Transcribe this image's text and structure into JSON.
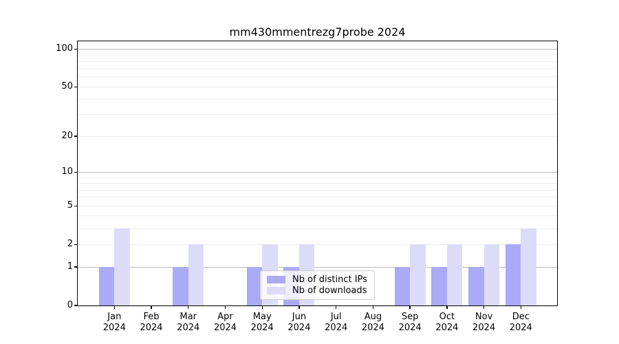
{
  "chart_data": {
    "type": "bar",
    "title": "mm430mmentrezg7probe 2024",
    "categories": [
      "Jan 2024",
      "Feb 2024",
      "Mar 2024",
      "Apr 2024",
      "May 2024",
      "Jun 2024",
      "Jul 2024",
      "Aug 2024",
      "Sep 2024",
      "Oct 2024",
      "Nov 2024",
      "Dec 2024"
    ],
    "x_tick_month_labels": [
      "Jan",
      "Feb",
      "Mar",
      "Apr",
      "May",
      "Jun",
      "Jul",
      "Aug",
      "Sep",
      "Oct",
      "Nov",
      "Dec"
    ],
    "x_tick_year_label": "2024",
    "series": [
      {
        "name": "Nb of distinct IPs",
        "color": "#aaaaf6",
        "values": [
          1,
          0,
          1,
          0,
          1,
          1,
          0,
          0,
          1,
          1,
          1,
          2
        ]
      },
      {
        "name": "Nb of downloads",
        "color": "#dcdcf8",
        "values": [
          3,
          0,
          2,
          0,
          2,
          2,
          0,
          0,
          2,
          2,
          2,
          3
        ]
      }
    ],
    "yscale": "log10(1+v)",
    "ylim": [
      0,
      115
    ],
    "y_ticks": [
      {
        "value": 0,
        "label": "0"
      },
      {
        "value": 1,
        "label": "1"
      },
      {
        "value": 2,
        "label": "2"
      },
      {
        "value": 5,
        "label": "5"
      },
      {
        "value": 10,
        "label": "10"
      },
      {
        "value": 20,
        "label": "20"
      },
      {
        "value": 50,
        "label": "50"
      },
      {
        "value": 100,
        "label": "100"
      }
    ],
    "major_gridlines": [
      1,
      10,
      100
    ],
    "minor_gridlines": [
      2,
      3,
      4,
      5,
      6,
      7,
      8,
      9,
      20,
      30,
      40,
      50,
      60,
      70,
      80,
      90
    ],
    "grid": true,
    "legend_position": "lower center"
  },
  "colors": {
    "major_grid": "#b9b9b9",
    "minor_grid": "#ededed",
    "spine": "#000000",
    "text": "#000000",
    "background": "#ffffff",
    "legend_border": "#cccccc"
  }
}
